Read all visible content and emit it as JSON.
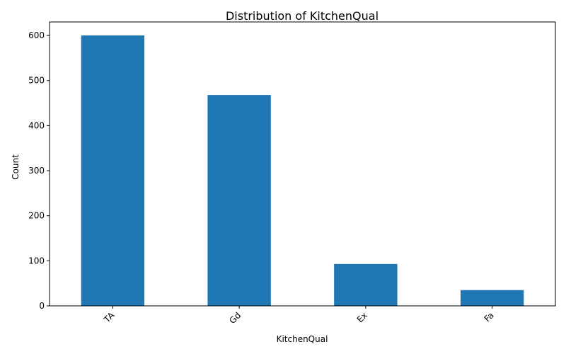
{
  "chart_data": {
    "type": "bar",
    "title": "Distribution of KitchenQual",
    "xlabel": "KitchenQual",
    "ylabel": "Count",
    "categories": [
      "TA",
      "Gd",
      "Ex",
      "Fa"
    ],
    "values": [
      600,
      468,
      93,
      35
    ],
    "ylim": [
      0,
      630
    ],
    "yticks": [
      0,
      100,
      200,
      300,
      400,
      500,
      600
    ],
    "bar_color": "#1f77b4",
    "grid": false,
    "legend": "none"
  }
}
